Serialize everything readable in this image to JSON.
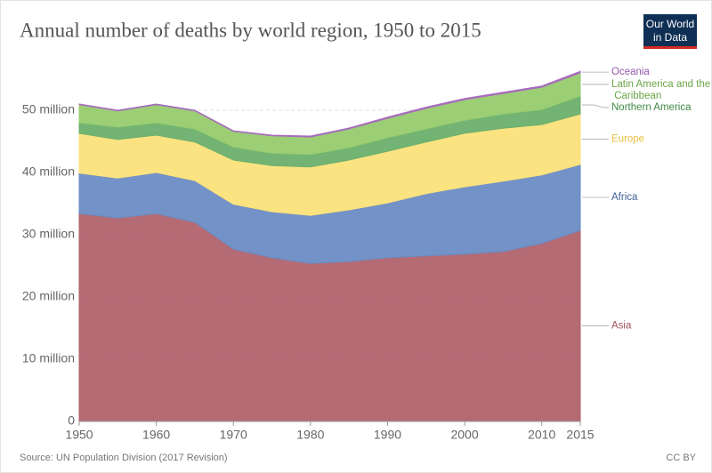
{
  "chart_data": {
    "type": "stacked_area",
    "title": "Annual number of deaths by world region, 1950 to 2015",
    "logo": [
      "Our World",
      "in Data"
    ],
    "source": "Source: UN Population Division (2017 Revision)",
    "license": "CC BY",
    "x": [
      1950,
      1955,
      1960,
      1965,
      1970,
      1975,
      1980,
      1985,
      1990,
      1995,
      2000,
      2005,
      2010,
      2015
    ],
    "series": [
      {
        "name": "Asia",
        "color": "#b0636d",
        "label_color": "#a2505c",
        "values": [
          33.4,
          32.7,
          33.4,
          32.0,
          27.7,
          26.3,
          25.4,
          25.7,
          26.3,
          26.6,
          26.9,
          27.3,
          28.6,
          30.7
        ]
      },
      {
        "name": "Africa",
        "color": "#6b8cc4",
        "label_color": "#3d5f97",
        "values": [
          6.5,
          6.4,
          6.6,
          6.7,
          7.2,
          7.4,
          7.7,
          8.3,
          8.8,
          10.0,
          10.8,
          11.3,
          11.0,
          10.6
        ]
      },
      {
        "name": "Europe",
        "color": "#fce17a",
        "label_color": "#e6bf3c",
        "values": [
          6.4,
          6.2,
          6.0,
          6.2,
          7.1,
          7.4,
          7.8,
          8.0,
          8.3,
          8.3,
          8.6,
          8.5,
          8.1,
          8.1
        ]
      },
      {
        "name": "Northern America",
        "color": "#6caf6c",
        "label_color": "#3f8a45",
        "values": [
          1.7,
          2.0,
          2.0,
          2.1,
          2.1,
          2.0,
          2.0,
          2.0,
          2.2,
          2.1,
          2.1,
          2.3,
          2.4,
          2.9
        ]
      },
      {
        "name": "Latin America and the Caribbean",
        "color": "#97cc6e",
        "label_color": "#6ba546",
        "values": [
          2.9,
          2.6,
          2.9,
          2.9,
          2.5,
          2.8,
          2.8,
          3.0,
          3.1,
          3.3,
          3.3,
          3.3,
          3.6,
          3.7
        ]
      },
      {
        "name": "Oceania",
        "color": "#a76bbd",
        "label_color": "#9458a9",
        "values": [
          0.1,
          0.1,
          0.1,
          0.1,
          0.1,
          0.1,
          0.15,
          0.15,
          0.2,
          0.2,
          0.2,
          0.2,
          0.2,
          0.25
        ]
      }
    ],
    "xlim": [
      1950,
      2015
    ],
    "xticks": [
      1950,
      1960,
      1970,
      1980,
      1990,
      2000,
      2010,
      2015
    ],
    "ylim": [
      0,
      57
    ],
    "yticks": [
      0,
      {
        "value": 10,
        "label": "10 million"
      },
      {
        "value": 20,
        "label": "20 million"
      },
      {
        "value": 30,
        "label": "30 million"
      },
      {
        "value": 40,
        "label": "40 million"
      },
      {
        "value": 50,
        "label": "50 million"
      }
    ],
    "grid": true
  }
}
